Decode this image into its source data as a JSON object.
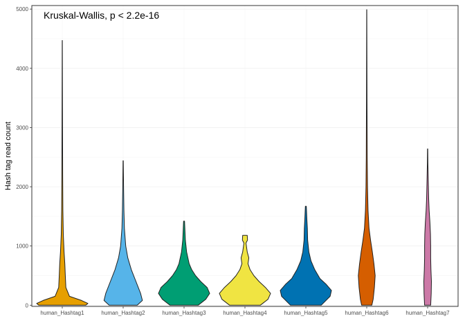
{
  "chart_data": {
    "type": "violin",
    "title": "",
    "annotation": "Kruskal-Wallis, p < 2.2e-16",
    "xlabel": "",
    "ylabel": "Hash tag read count",
    "ylim": [
      -20,
      5060
    ],
    "yticks": [
      0,
      1000,
      2000,
      3000,
      4000,
      5000
    ],
    "grid": "light horizontal gridlines",
    "legend": "none",
    "series": [
      {
        "name": "human_Hashtag1",
        "color": "#E69F00",
        "profile": [
          [
            0,
            0.92
          ],
          [
            30,
            1.0
          ],
          [
            80,
            0.75
          ],
          [
            150,
            0.28
          ],
          [
            300,
            0.14
          ],
          [
            500,
            0.12
          ],
          [
            700,
            0.1
          ],
          [
            900,
            0.07
          ],
          [
            1200,
            0.04
          ],
          [
            1600,
            0.025
          ],
          [
            2200,
            0.015
          ],
          [
            3000,
            0.01
          ],
          [
            4470,
            0.004
          ]
        ]
      },
      {
        "name": "human_Hashtag2",
        "color": "#56B4E9",
        "profile": [
          [
            0,
            0.55
          ],
          [
            80,
            0.75
          ],
          [
            200,
            0.68
          ],
          [
            400,
            0.5
          ],
          [
            600,
            0.32
          ],
          [
            800,
            0.18
          ],
          [
            1000,
            0.1
          ],
          [
            1300,
            0.05
          ],
          [
            1600,
            0.03
          ],
          [
            2000,
            0.015
          ],
          [
            2440,
            0.005
          ]
        ]
      },
      {
        "name": "human_Hashtag3",
        "color": "#009E73",
        "profile": [
          [
            0,
            0.55
          ],
          [
            100,
            0.85
          ],
          [
            200,
            1.0
          ],
          [
            300,
            0.9
          ],
          [
            400,
            0.65
          ],
          [
            500,
            0.45
          ],
          [
            600,
            0.3
          ],
          [
            700,
            0.2
          ],
          [
            900,
            0.1
          ],
          [
            1100,
            0.05
          ],
          [
            1420,
            0.02
          ]
        ]
      },
      {
        "name": "human_Hashtag4",
        "color": "#F0E442",
        "profile": [
          [
            0,
            0.6
          ],
          [
            100,
            0.9
          ],
          [
            200,
            1.0
          ],
          [
            300,
            0.8
          ],
          [
            400,
            0.55
          ],
          [
            500,
            0.35
          ],
          [
            600,
            0.2
          ],
          [
            700,
            0.12
          ],
          [
            800,
            0.15
          ],
          [
            900,
            0.09
          ],
          [
            1050,
            0.04
          ],
          [
            1100,
            0.1
          ],
          [
            1180,
            0.09
          ]
        ]
      },
      {
        "name": "human_Hashtag5",
        "color": "#0072B2",
        "profile": [
          [
            0,
            0.6
          ],
          [
            150,
            0.95
          ],
          [
            250,
            1.0
          ],
          [
            350,
            0.8
          ],
          [
            450,
            0.55
          ],
          [
            600,
            0.35
          ],
          [
            750,
            0.2
          ],
          [
            900,
            0.12
          ],
          [
            1100,
            0.07
          ],
          [
            1300,
            0.06
          ],
          [
            1450,
            0.04
          ],
          [
            1670,
            0.02
          ]
        ]
      },
      {
        "name": "human_Hashtag6",
        "color": "#D55E00",
        "profile": [
          [
            0,
            0.2
          ],
          [
            100,
            0.25
          ],
          [
            300,
            0.3
          ],
          [
            500,
            0.33
          ],
          [
            700,
            0.28
          ],
          [
            900,
            0.22
          ],
          [
            1100,
            0.15
          ],
          [
            1300,
            0.09
          ],
          [
            1600,
            0.05
          ],
          [
            2000,
            0.03
          ],
          [
            2500,
            0.02
          ],
          [
            3500,
            0.01
          ],
          [
            4990,
            0.004
          ]
        ]
      },
      {
        "name": "human_Hashtag7",
        "color": "#CC79A7",
        "profile": [
          [
            0,
            0.12
          ],
          [
            200,
            0.14
          ],
          [
            400,
            0.15
          ],
          [
            600,
            0.13
          ],
          [
            800,
            0.12
          ],
          [
            1000,
            0.12
          ],
          [
            1200,
            0.11
          ],
          [
            1400,
            0.09
          ],
          [
            1600,
            0.06
          ],
          [
            1800,
            0.04
          ],
          [
            2100,
            0.025
          ],
          [
            2400,
            0.012
          ],
          [
            2640,
            0.006
          ]
        ]
      }
    ]
  }
}
